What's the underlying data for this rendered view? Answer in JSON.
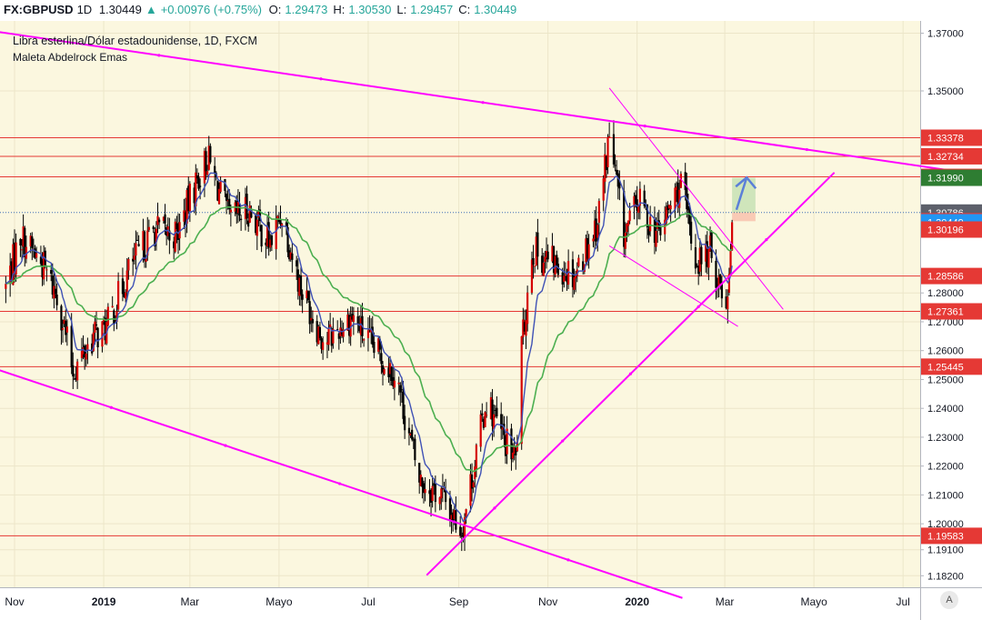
{
  "header": {
    "symbol": "FX:GBPUSD",
    "interval": "1D",
    "last": "1.30449",
    "change_arrow": "▲",
    "change": "+0.00976 (+0.75%)",
    "o_label": "O:",
    "o": "1.29473",
    "h_label": "H:",
    "h": "1.30530",
    "l_label": "L:",
    "l": "1.29457",
    "c_label": "C:",
    "c": "1.30449"
  },
  "legend": {
    "title": "Libra esterlina/Dólar estadounidense, 1D, FXCM",
    "indicator": "Maleta Abdelrock Emas"
  },
  "auto_button": "A",
  "colors": {
    "background": "#fbf7df",
    "up": "#d50000",
    "down": "#000000",
    "ema_fast": "#3f51b5",
    "ema_slow": "#4caf50",
    "trendline": "#ff00ff",
    "hline": "#e53935",
    "last_price": "#2196f3"
  },
  "chart_data": {
    "type": "candlestick",
    "symbol": "GBPUSD",
    "timeframe": "1D",
    "ylim": [
      1.178,
      1.373
    ],
    "y_ticks": [
      "1.37000",
      "1.35000",
      "1.33378",
      "1.32734",
      "1.32022",
      "1.31990",
      "1.30786",
      "1.30485",
      "1.30449",
      "1.30196",
      "1.28586",
      "1.28000",
      "1.27361",
      "1.27000",
      "1.26000",
      "1.25445",
      "1.25000",
      "1.24000",
      "1.23000",
      "1.22000",
      "1.21000",
      "1.20000",
      "1.19583",
      "1.19100",
      "1.18200"
    ],
    "x_labels": [
      "Nov",
      "2019",
      "Mar",
      "May",
      "Jul",
      "Sep",
      "Nov",
      "2020",
      "Mar",
      "Mayo",
      "Jul"
    ],
    "x_label_text": [
      "Nov",
      "2019",
      "Mar",
      "Mayo",
      "Jul",
      "Sep",
      "Nov",
      "2020",
      "Mar",
      "Mayo",
      "Jul"
    ],
    "price_path": [
      [
        "2018-10-26",
        1.282
      ],
      [
        "2018-11-05",
        1.3
      ],
      [
        "2018-11-20",
        1.29
      ],
      [
        "2018-12-01",
        1.278
      ],
      [
        "2018-12-11",
        1.253
      ],
      [
        "2018-12-25",
        1.265
      ],
      [
        "2019-01-03",
        1.268
      ],
      [
        "2019-01-20",
        1.29
      ],
      [
        "2019-02-05",
        1.302
      ],
      [
        "2019-02-20",
        1.3
      ],
      [
        "2019-03-05",
        1.318
      ],
      [
        "2019-03-13",
        1.327
      ],
      [
        "2019-03-28",
        1.305
      ],
      [
        "2019-04-10",
        1.309
      ],
      [
        "2019-04-25",
        1.297
      ],
      [
        "2019-05-03",
        1.308
      ],
      [
        "2019-05-15",
        1.283
      ],
      [
        "2019-06-01",
        1.263
      ],
      [
        "2019-06-20",
        1.272
      ],
      [
        "2019-07-01",
        1.263
      ],
      [
        "2019-07-20",
        1.252
      ],
      [
        "2019-08-05",
        1.215
      ],
      [
        "2019-08-20",
        1.21
      ],
      [
        "2019-09-03",
        1.198
      ],
      [
        "2019-09-20",
        1.243
      ],
      [
        "2019-10-01",
        1.23
      ],
      [
        "2019-10-10",
        1.222
      ],
      [
        "2019-10-14",
        1.26
      ],
      [
        "2019-10-21",
        1.295
      ],
      [
        "2019-11-05",
        1.29
      ],
      [
        "2019-11-20",
        1.287
      ],
      [
        "2019-12-05",
        1.305
      ],
      [
        "2019-12-13",
        1.335
      ],
      [
        "2019-12-23",
        1.3
      ],
      [
        "2020-01-02",
        1.312
      ],
      [
        "2020-01-15",
        1.3
      ],
      [
        "2020-01-31",
        1.318
      ],
      [
        "2020-02-10",
        1.291
      ],
      [
        "2020-02-20",
        1.294
      ],
      [
        "2020-03-02",
        1.276
      ],
      [
        "2020-03-06",
        1.304
      ]
    ],
    "series": [
      {
        "name": "GBPUSD"
      },
      {
        "name": "Maleta Abdelrock Emas"
      }
    ],
    "horizontal_levels": [
      1.33378,
      1.32734,
      1.32022,
      1.28586,
      1.27361,
      1.25445,
      1.19583
    ],
    "price_labels": [
      {
        "value": 1.33378,
        "label": "1.33378",
        "color": "#e53935"
      },
      {
        "value": 1.32734,
        "label": "1.32734",
        "color": "#e53935"
      },
      {
        "value": 1.32022,
        "label": "1.32022",
        "color": "#e53935"
      },
      {
        "value": 1.3199,
        "label": "1.31990",
        "color": "#2e7d32"
      },
      {
        "value": 1.30786,
        "label": "1.30786",
        "color": "#5d606b"
      },
      {
        "value": 1.30485,
        "label": "1.30485",
        "color": "#e53935"
      },
      {
        "value": 1.30449,
        "label": "1.30449",
        "color": "#2196f3"
      },
      {
        "value": 1.30196,
        "label": "1.30196",
        "color": "#e53935"
      },
      {
        "value": 1.28586,
        "label": "1.28586",
        "color": "#e53935"
      },
      {
        "value": 1.27361,
        "label": "1.27361",
        "color": "#e53935"
      },
      {
        "value": 1.25445,
        "label": "1.25445",
        "color": "#e53935"
      },
      {
        "value": 1.19583,
        "label": "1.19583",
        "color": "#e53935"
      }
    ],
    "trendlines": [
      {
        "name": "upper-channel",
        "from": [
          "2018-10-20",
          1.3705
        ],
        "to": [
          "2020-08-15",
          1.3215
        ]
      },
      {
        "name": "lower-channel",
        "from": [
          "2018-10-20",
          1.2535
        ],
        "to": [
          "2020-02-01",
          1.1743
        ]
      },
      {
        "name": "rising-support",
        "from": [
          "2019-08-10",
          1.1822
        ],
        "to": [
          "2020-05-15",
          1.3217
        ]
      },
      {
        "name": "wedge-upper",
        "from": [
          "2019-12-13",
          1.351
        ],
        "to": [
          "2020-04-10",
          1.2743
        ]
      },
      {
        "name": "wedge-lower",
        "from": [
          "2019-12-13",
          1.2963
        ],
        "to": [
          "2020-03-10",
          1.2684
        ]
      }
    ],
    "position_tool": {
      "start": "2020-03-06",
      "end": "2020-03-22",
      "entry": 1.30786,
      "target": 1.3199,
      "stop": 1.30485
    },
    "arrow": {
      "from": [
        "2020-03-09",
        1.3088
      ],
      "to": [
        "2020-03-16",
        1.32
      ]
    }
  }
}
